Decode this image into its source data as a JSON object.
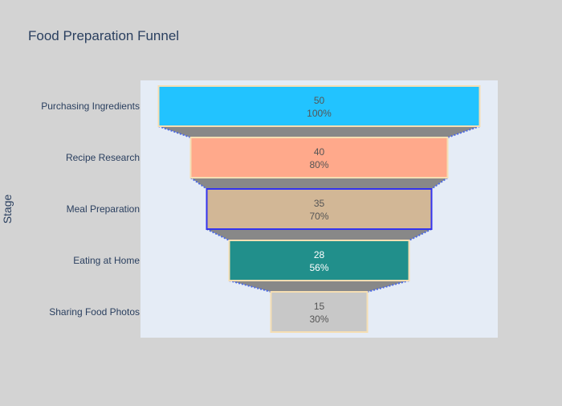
{
  "chart_data": {
    "type": "funnel",
    "title": "Food Preparation Funnel",
    "ylabel": "Stage",
    "stages": [
      "Purchasing Ingredients",
      "Recipe Research",
      "Meal Preparation",
      "Eating at Home",
      "Sharing Food Photos"
    ],
    "values": [
      50,
      40,
      35,
      28,
      15
    ],
    "percent_labels": [
      "100%",
      "80%",
      "70%",
      "56%",
      "30%"
    ],
    "bar_colors": [
      "#22c3ff",
      "#ffa98b",
      "#d2b796",
      "#218f8b",
      "#c8c8c8"
    ],
    "bar_outline_colors": [
      "#f5deb3",
      "#f5deb3",
      "#3333ee",
      "#f5deb3",
      "#f5deb3"
    ],
    "text_colors": [
      "#555555",
      "#555555",
      "#555555",
      "#ffffff",
      "#555555"
    ],
    "connector_color": "#888888",
    "connector_dash_color": "#4b69e6",
    "plot_background": "#e5ecf6",
    "page_background": "#d3d3d3"
  }
}
